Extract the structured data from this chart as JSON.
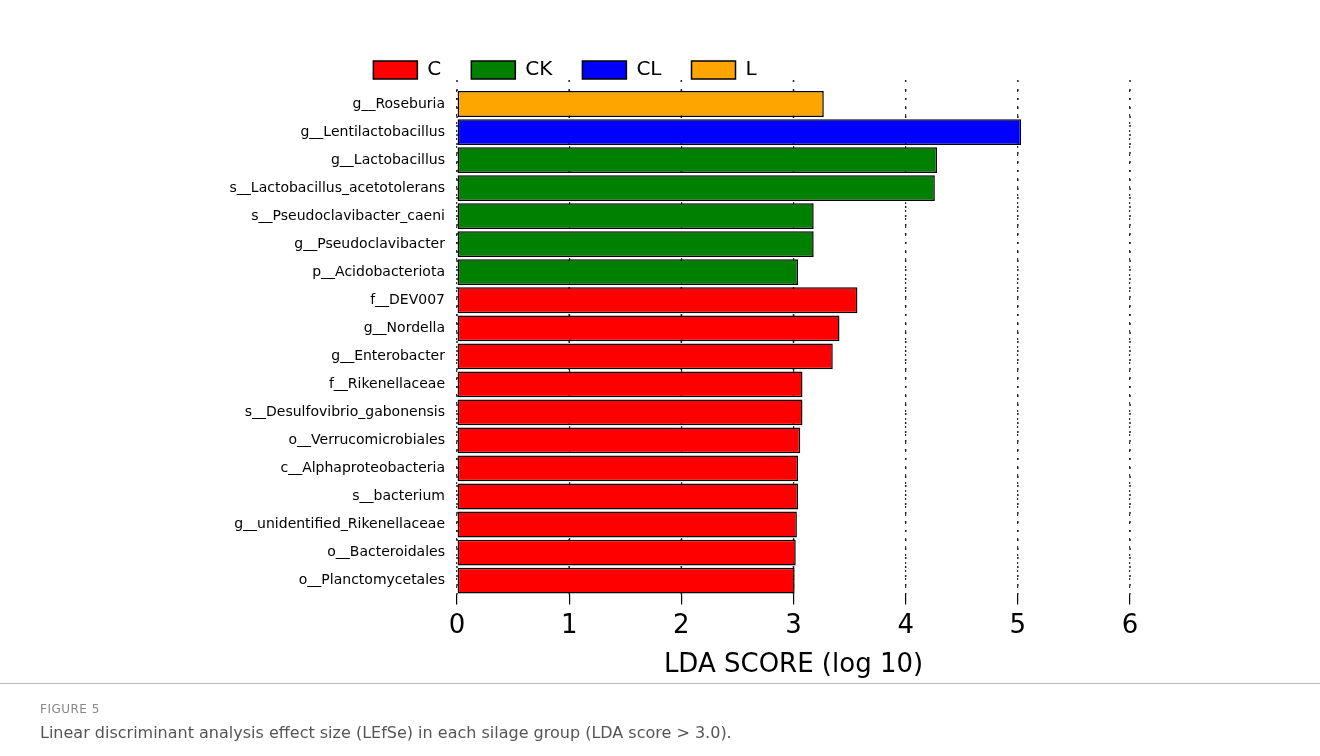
{
  "chart_data": {
    "type": "bar",
    "orientation": "horizontal",
    "xlabel": "LDA SCORE (log 10)",
    "categories": [
      "g__Roseburia",
      "g__Lentilactobacillus",
      "g__Lactobacillus",
      "s__Lactobacillus_acetotolerans",
      "s__Pseudoclavibacter_caeni",
      "g__Pseudoclavibacter",
      "p__Acidobacteriota",
      "f__DEV007",
      "g__Nordella",
      "g__Enterobacter",
      "f__Rikenellaceae",
      "s__Desulfovibrio_gabonensis",
      "o__Verrucomicrobiales",
      "c__Alphaproteobacteria",
      "s__bacterium",
      "g__unidentified_Rikenellaceae",
      "o__Bacteroidales",
      "o__Planctomycetales"
    ],
    "series": [
      {
        "name": "C",
        "color": "#ff0000",
        "values": [
          null,
          null,
          null,
          null,
          null,
          null,
          null,
          3.57,
          3.41,
          3.35,
          3.08,
          3.08,
          3.06,
          3.04,
          3.04,
          3.03,
          3.02,
          3.01
        ]
      },
      {
        "name": "CK",
        "color": "#008000",
        "values": [
          null,
          null,
          4.28,
          4.26,
          3.18,
          3.18,
          3.04,
          null,
          null,
          null,
          null,
          null,
          null,
          null,
          null,
          null,
          null,
          null
        ]
      },
      {
        "name": "CL",
        "color": "#0000ff",
        "values": [
          null,
          5.03,
          null,
          null,
          null,
          null,
          null,
          null,
          null,
          null,
          null,
          null,
          null,
          null,
          null,
          null,
          null,
          null
        ]
      },
      {
        "name": "L",
        "color": "#ffa500",
        "values": [
          3.27,
          null,
          null,
          null,
          null,
          null,
          null,
          null,
          null,
          null,
          null,
          null,
          null,
          null,
          null,
          null,
          null,
          null
        ]
      }
    ],
    "xlim": [
      0,
      6
    ],
    "xticks": [
      0,
      1,
      2,
      3,
      4,
      5,
      6
    ],
    "grid": "x",
    "legend": "top",
    "annotations": [
      "FIGURE 5",
      "Linear discriminant analysis effect size (LEfSe) in each silage group (LDA score > 3.0)."
    ]
  }
}
